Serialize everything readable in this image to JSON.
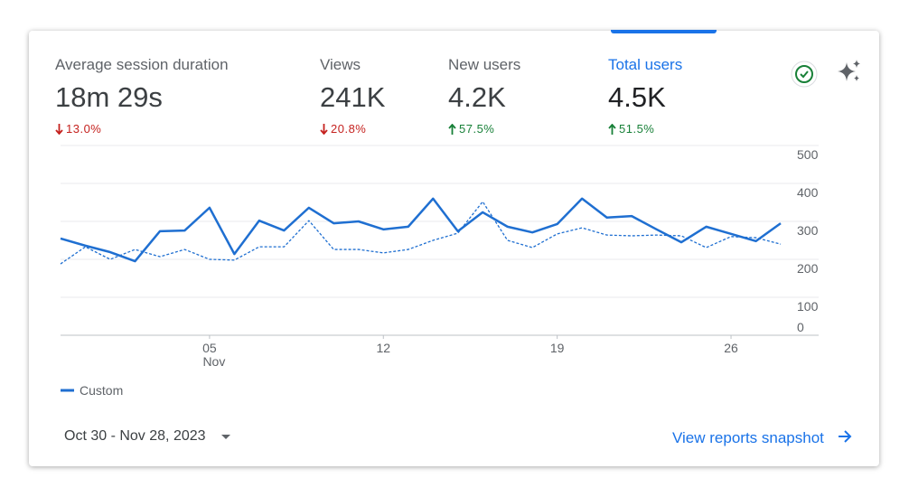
{
  "metrics": [
    {
      "title": "Average session duration",
      "value": "18m 29s",
      "change": "13.0%",
      "trend": "down"
    },
    {
      "title": "Views",
      "value": "241K",
      "change": "20.8%",
      "trend": "down"
    },
    {
      "title": "New users",
      "value": "4.2K",
      "change": "57.5%",
      "trend": "up"
    },
    {
      "title": "Total users",
      "value": "4.5K",
      "change": "51.5%",
      "trend": "up"
    }
  ],
  "selected_metric": 3,
  "chart_data": {
    "type": "line",
    "categories": [
      null,
      null,
      null,
      null,
      null,
      null,
      "05",
      null,
      null,
      null,
      null,
      null,
      null,
      "12",
      null,
      null,
      null,
      null,
      null,
      null,
      "19",
      null,
      null,
      null,
      null,
      null,
      null,
      "26",
      null,
      null
    ],
    "month_label": "Nov",
    "series": [
      {
        "name": "Custom",
        "color": "#1f6fd1",
        "dashed": false,
        "values": [
          255,
          236,
          219,
          195,
          274,
          276,
          336,
          214,
          302,
          276,
          336,
          295,
          300,
          279,
          286,
          360,
          274,
          324,
          286,
          271,
          293,
          360,
          310,
          314,
          279,
          245,
          286,
          267,
          248,
          295
        ]
      },
      {
        "color": "#1f6fd1",
        "dashed": true,
        "values": [
          188,
          233,
          200,
          226,
          207,
          226,
          200,
          198,
          233,
          233,
          302,
          226,
          226,
          217,
          226,
          250,
          269,
          352,
          250,
          231,
          267,
          283,
          264,
          262,
          264,
          262,
          231,
          260,
          257,
          240
        ]
      }
    ],
    "ylim": [
      0,
      500
    ],
    "yticks": [
      0,
      100,
      200,
      300,
      400,
      500
    ],
    "grid": true
  },
  "date_range": "Oct 30 - Nov 28, 2023",
  "link": "View reports snapshot"
}
